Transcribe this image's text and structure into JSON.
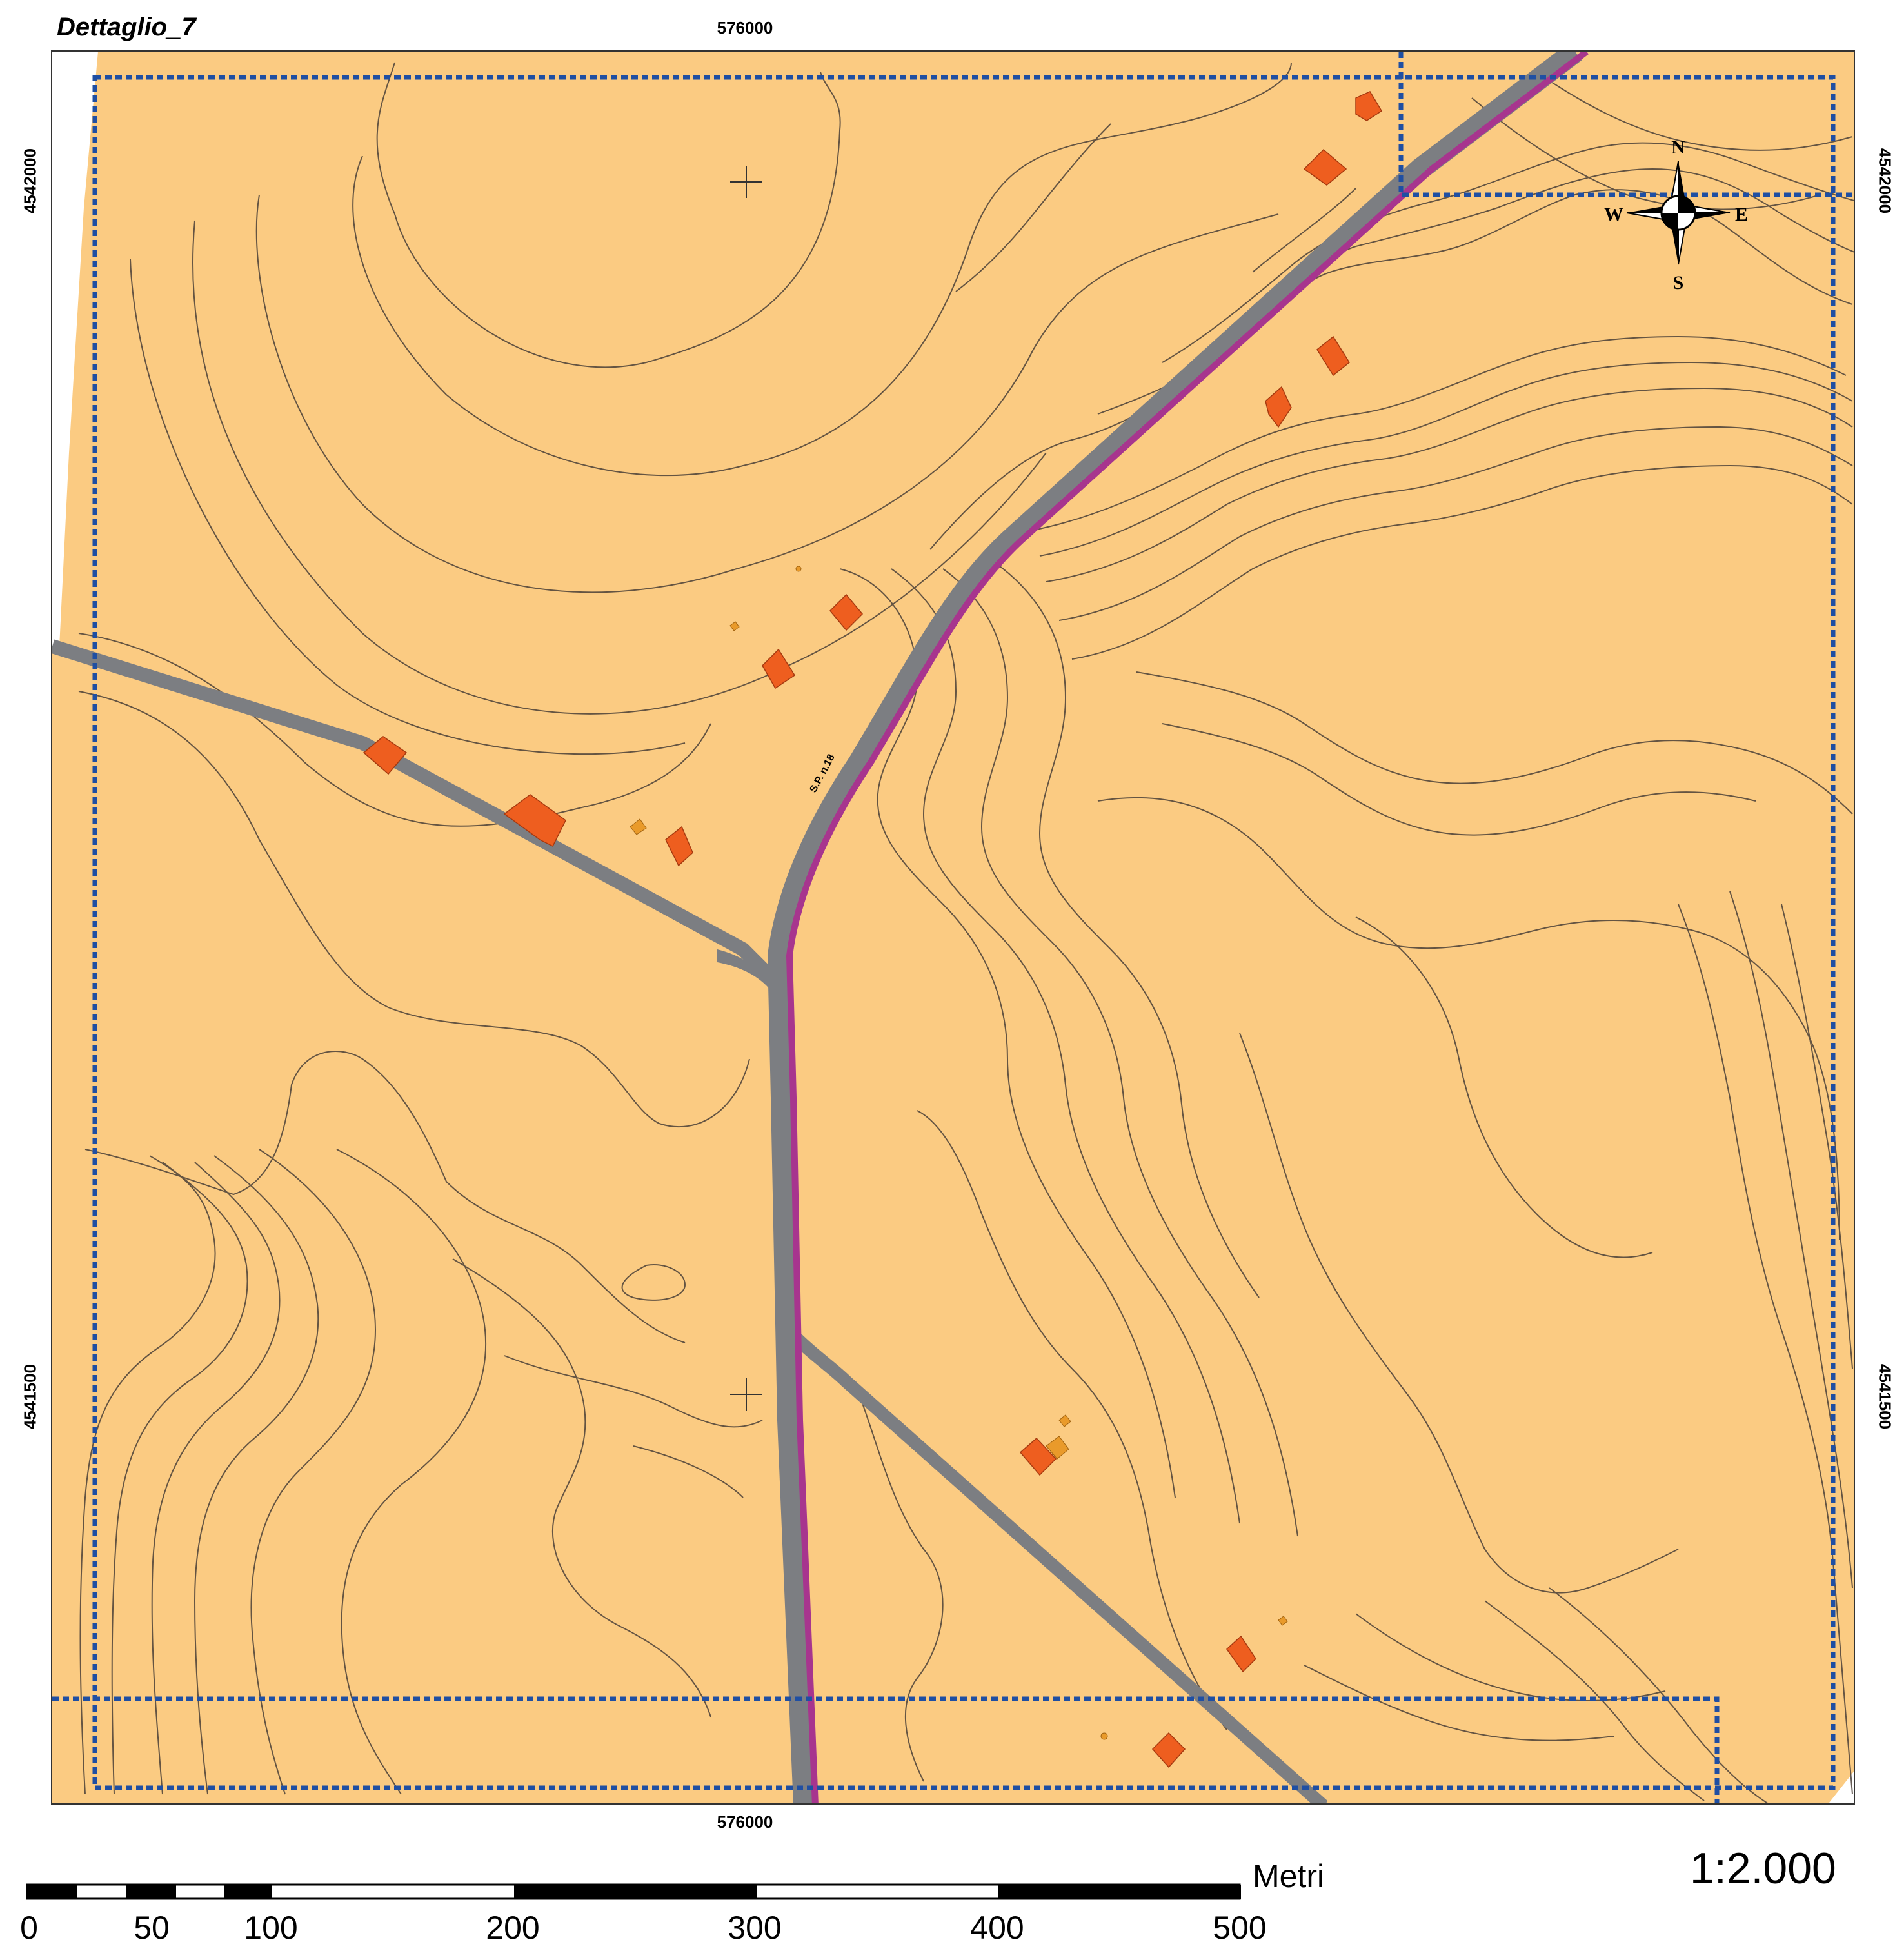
{
  "map": {
    "title": "Dettaglio_7",
    "coords": {
      "easting": "576000",
      "northing_top": "4542000",
      "northing_bottom": "4541500"
    },
    "compass": {
      "n": "N",
      "s": "S",
      "e": "E",
      "w": "W"
    },
    "road_label": "S.P. n.18",
    "scale_ratio": "1:2.000",
    "scale_bar": {
      "unit": "Metri",
      "ticks": [
        "0",
        "50",
        "100",
        "200",
        "300",
        "400",
        "500"
      ]
    },
    "colors": {
      "land": "#FBCB82",
      "road": "#7C7E82",
      "main_road": "#A7358E",
      "building": "#EE5E1F",
      "building_minor": "#E99A2A",
      "boundary": "#1F4FA3",
      "contour": "#4A4038"
    }
  }
}
